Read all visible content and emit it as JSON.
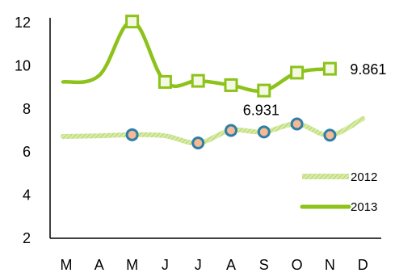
{
  "chart_data": {
    "type": "line",
    "categories": [
      "M",
      "A",
      "M",
      "J",
      "J",
      "A",
      "S",
      "O",
      "N",
      "D"
    ],
    "ylim": [
      2,
      12
    ],
    "yticks": [
      "2",
      "4",
      "6",
      "8",
      "10",
      "12"
    ],
    "grid": false,
    "legend_position": "bottom-right",
    "series": [
      {
        "name": "2012",
        "color": "#c6e28a",
        "style": "thick-patterned",
        "values": [
          6.72,
          6.75,
          6.8,
          6.75,
          6.42,
          7.0,
          6.931,
          7.3,
          6.78,
          7.55
        ],
        "markers": [
          false,
          false,
          true,
          false,
          true,
          true,
          true,
          true,
          true,
          false
        ]
      },
      {
        "name": "2013",
        "color": "#8cc21a",
        "style": "solid",
        "values": [
          9.25,
          9.55,
          12.05,
          9.25,
          9.3,
          9.1,
          8.85,
          9.68,
          9.861,
          null
        ],
        "markers": [
          false,
          false,
          true,
          true,
          true,
          true,
          true,
          true,
          true,
          false
        ]
      }
    ],
    "data_labels": [
      {
        "series": "2012",
        "index": 6,
        "text": "6.931"
      },
      {
        "series": "2013",
        "index": 8,
        "text": "9.861"
      }
    ]
  }
}
